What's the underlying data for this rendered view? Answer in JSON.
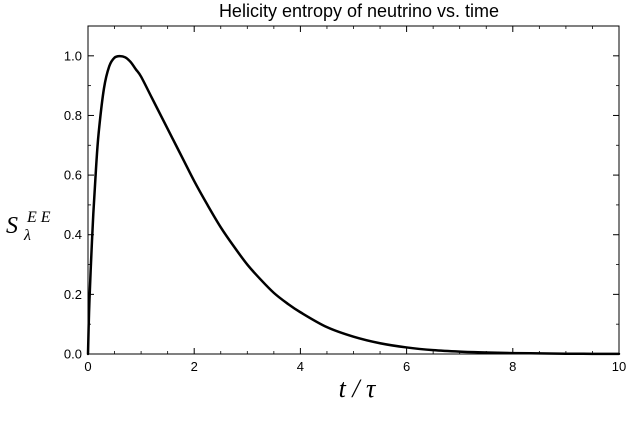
{
  "chart_data": {
    "type": "line",
    "title": "Helicity entropy of neutrino vs. time",
    "xlabel": "t / τ",
    "ylabel": {
      "base": "S",
      "superscript": "E E",
      "subscript": "λ"
    },
    "xlim": [
      0,
      10
    ],
    "ylim": [
      0,
      1.1
    ],
    "x_ticks": [
      0,
      2,
      4,
      6,
      8,
      10
    ],
    "y_ticks": [
      0.0,
      0.2,
      0.4,
      0.6,
      0.8,
      1.0
    ],
    "x_tick_labels": [
      "0",
      "2",
      "4",
      "6",
      "8",
      "10"
    ],
    "y_tick_labels": [
      "0.0",
      "0.2",
      "0.4",
      "0.6",
      "0.8",
      "1.0"
    ],
    "grid": false,
    "series": [
      {
        "color": "#000000",
        "x": [
          0,
          0.02,
          0.05,
          0.1,
          0.15,
          0.2,
          0.3,
          0.4,
          0.5,
          0.6,
          0.7,
          0.8,
          0.9,
          1.0,
          1.2,
          1.4,
          1.6,
          1.8,
          2.0,
          2.25,
          2.5,
          2.75,
          3.0,
          3.25,
          3.5,
          3.75,
          4.0,
          4.5,
          5.0,
          5.5,
          6.0,
          6.5,
          7.0,
          7.5,
          8.0,
          8.5,
          9.0,
          9.5,
          10.0
        ],
        "y": [
          0.0,
          0.14,
          0.28,
          0.47,
          0.62,
          0.74,
          0.89,
          0.965,
          0.994,
          0.999,
          0.995,
          0.98,
          0.955,
          0.93,
          0.86,
          0.79,
          0.72,
          0.65,
          0.58,
          0.5,
          0.425,
          0.36,
          0.3,
          0.25,
          0.205,
          0.17,
          0.14,
          0.09,
          0.058,
          0.036,
          0.022,
          0.013,
          0.008,
          0.005,
          0.003,
          0.002,
          0.001,
          0.0006,
          0.0003
        ]
      }
    ]
  }
}
